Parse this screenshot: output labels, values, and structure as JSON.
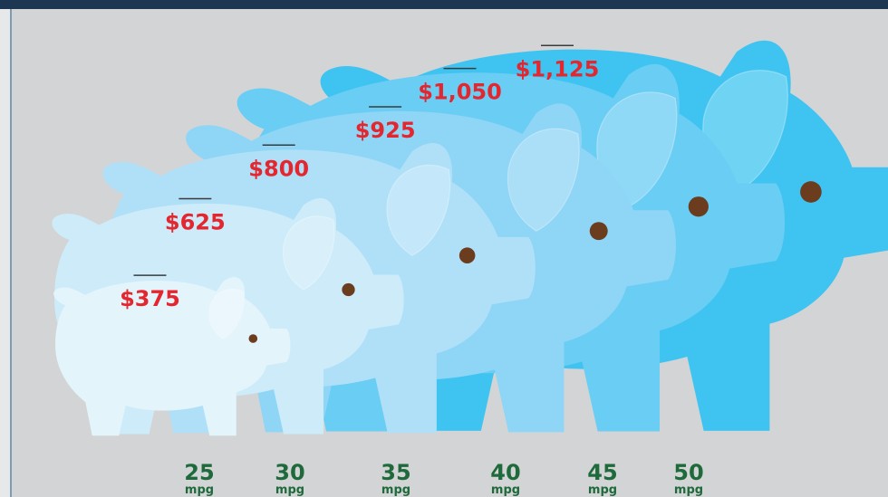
{
  "chart_data": {
    "type": "pictograph",
    "categories": [
      "25",
      "30",
      "35",
      "40",
      "45",
      "50"
    ],
    "category_unit": "mpg",
    "values": [
      375,
      625,
      800,
      925,
      1050,
      1125
    ],
    "value_labels": [
      "$375",
      "$625",
      "$800",
      "$925",
      "$1,050",
      "$1,125"
    ],
    "colors": [
      "#e4f4fb",
      "#cdebf9",
      "#b0e0f8",
      "#8fd5f6",
      "#6acdf4",
      "#3fc4f1"
    ]
  }
}
